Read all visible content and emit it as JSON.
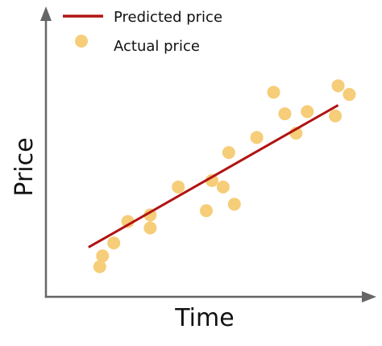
{
  "chart_data": {
    "type": "scatter",
    "title": "",
    "xlabel": "Time",
    "ylabel": "Price",
    "xlim": [
      0,
      100
    ],
    "ylim": [
      0,
      100
    ],
    "grid": false,
    "legend_position": "top-left",
    "colors": {
      "line": "#b11414",
      "points": "#f6cd78",
      "axes": "#666666"
    },
    "series": [
      {
        "name": "Predicted price",
        "type": "line",
        "points": [
          {
            "x": 8,
            "y": 17
          },
          {
            "x": 97,
            "y": 83
          }
        ]
      },
      {
        "name": "Actual price",
        "type": "scatter",
        "points": [
          {
            "x": 12,
            "y": 8
          },
          {
            "x": 13,
            "y": 13
          },
          {
            "x": 17,
            "y": 19
          },
          {
            "x": 22,
            "y": 29
          },
          {
            "x": 30,
            "y": 26
          },
          {
            "x": 30,
            "y": 32
          },
          {
            "x": 40,
            "y": 45
          },
          {
            "x": 50,
            "y": 34
          },
          {
            "x": 52,
            "y": 48
          },
          {
            "x": 56,
            "y": 45
          },
          {
            "x": 58,
            "y": 61
          },
          {
            "x": 60,
            "y": 37
          },
          {
            "x": 68,
            "y": 68
          },
          {
            "x": 74,
            "y": 89
          },
          {
            "x": 78,
            "y": 79
          },
          {
            "x": 82,
            "y": 70
          },
          {
            "x": 86,
            "y": 80
          },
          {
            "x": 96,
            "y": 78
          },
          {
            "x": 97,
            "y": 92
          },
          {
            "x": 101,
            "y": 88
          }
        ]
      }
    ]
  }
}
